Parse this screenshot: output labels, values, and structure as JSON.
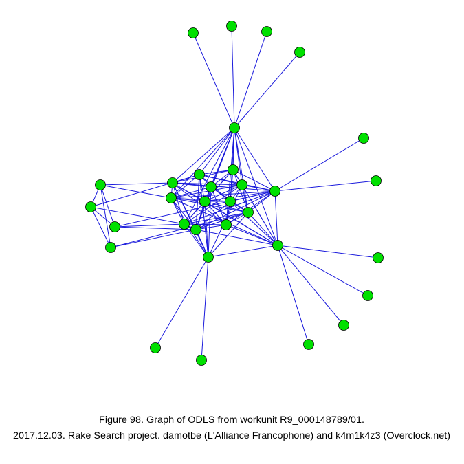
{
  "caption": {
    "line1": "Figure 98. Graph of ODLS from workunit R9_000148789/01.",
    "line2": "2017.12.03. Rake Search project. damotbe (L'Alliance Francophone) and k4m1k4z3 (Overclock.net)"
  }
}
